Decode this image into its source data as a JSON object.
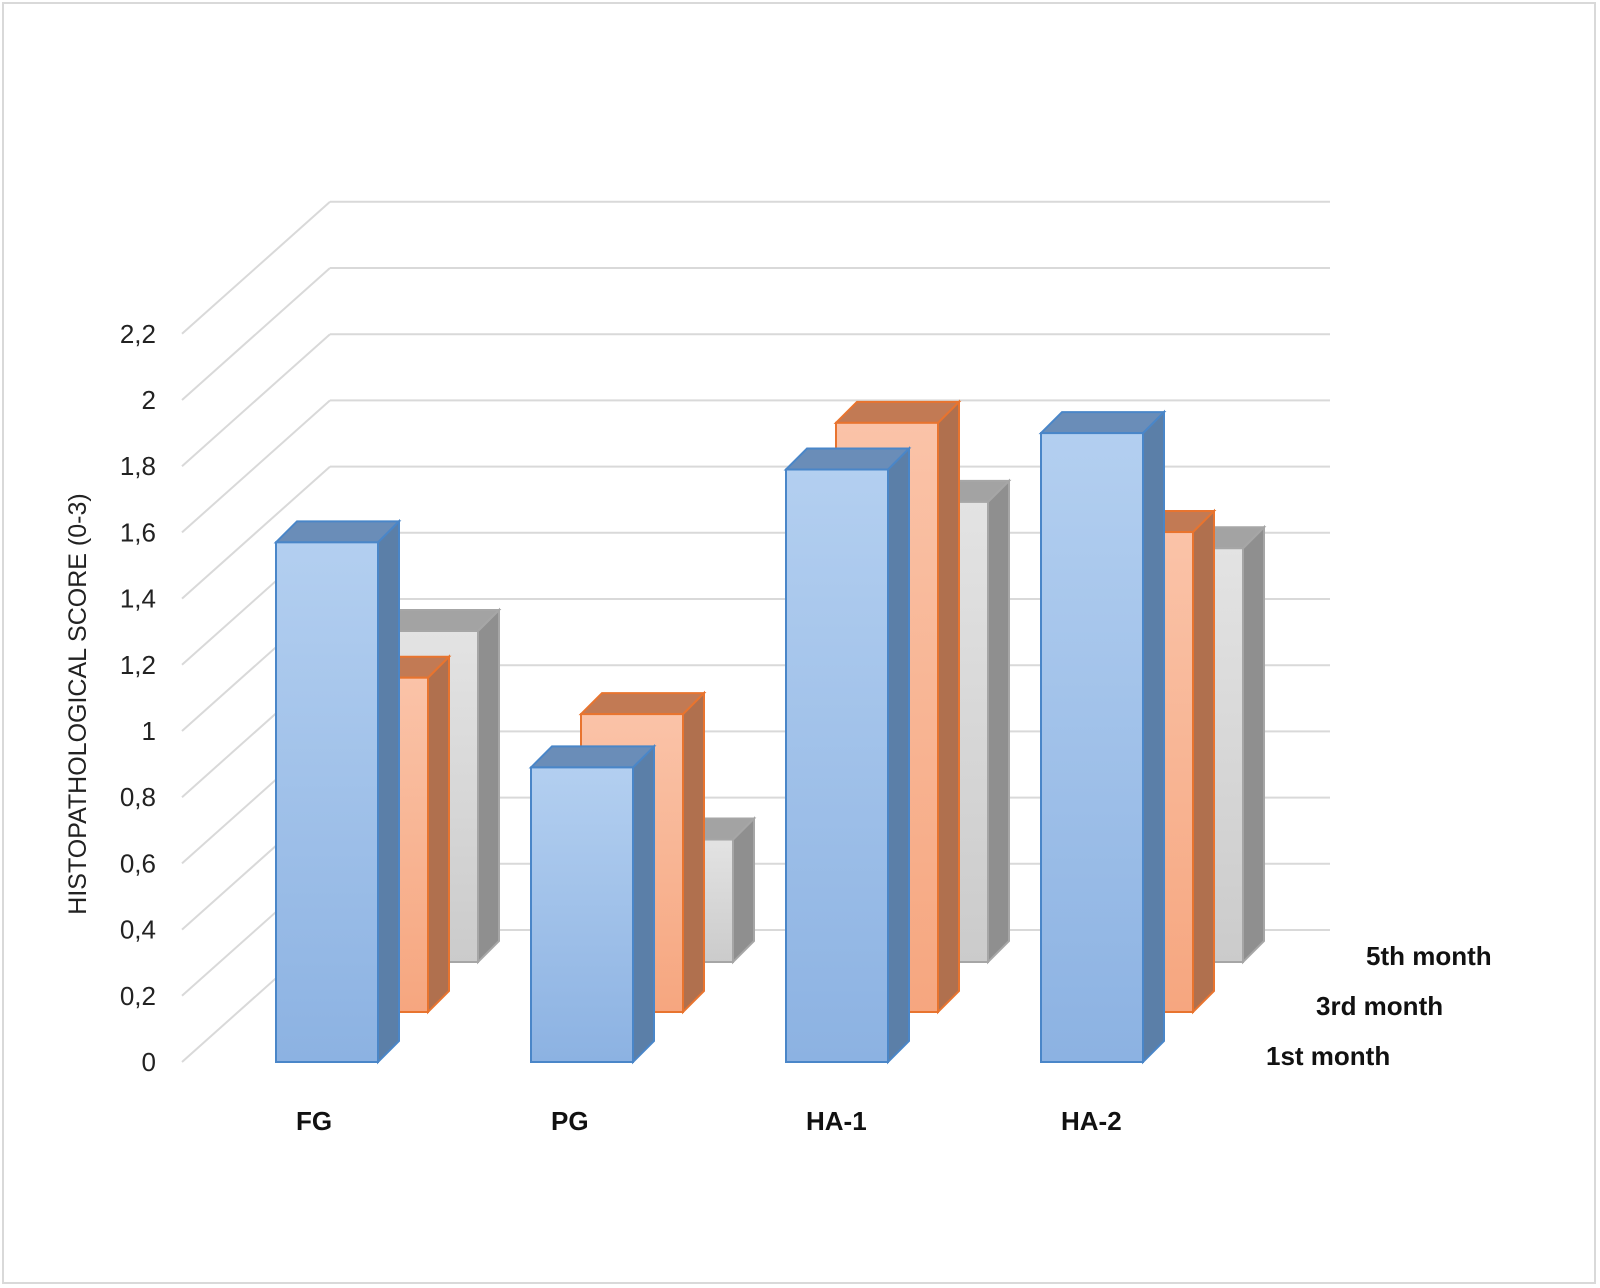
{
  "chart_data": {
    "type": "bar",
    "title": "",
    "xlabel": "",
    "ylabel": "HISTOPATHOLOGICAL SCORE (0-3)",
    "ylim": [
      0,
      2.2
    ],
    "y_ticks": [
      "0",
      "0,2",
      "0,4",
      "0,6",
      "0,8",
      "1",
      "1,2",
      "1,4",
      "1,6",
      "1,8",
      "2",
      "2,2"
    ],
    "categories": [
      "FG",
      "PG",
      "HA-1",
      "HA-2"
    ],
    "grid": true,
    "legend": "series labels along depth axis, right",
    "series": [
      {
        "name": "1st month",
        "values": [
          1.57,
          0.89,
          1.79,
          1.9
        ],
        "color": "#9dbfe8",
        "edge": "#4a86c8"
      },
      {
        "name": "3rd month",
        "values": [
          1.01,
          0.9,
          1.78,
          1.45
        ],
        "color": "#f8b796",
        "edge": "#e8742f"
      },
      {
        "name": "5th month",
        "values": [
          1.0,
          0.37,
          1.39,
          1.25
        ],
        "color": "#d6d6d6",
        "edge": "#a6a6a6"
      }
    ]
  }
}
